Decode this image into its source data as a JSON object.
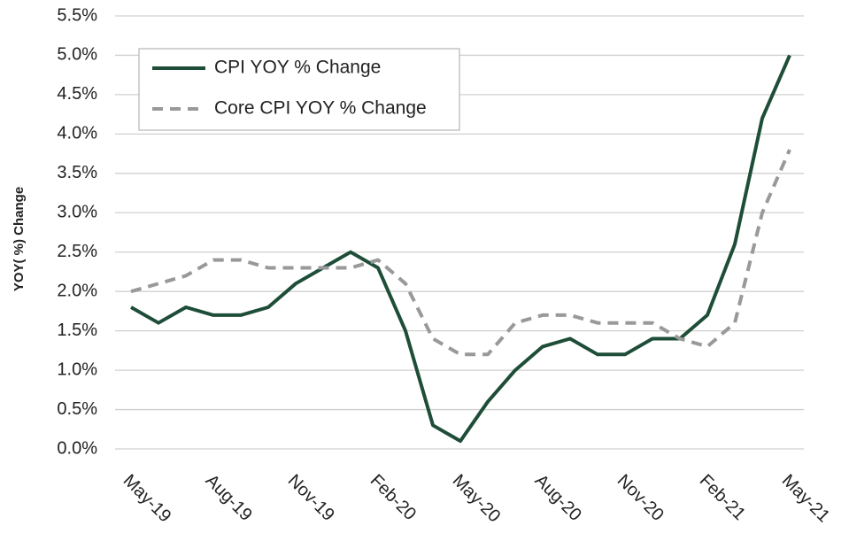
{
  "chart_data": {
    "type": "line",
    "ylabel": "YOY( %) Change",
    "categories": [
      "May-19",
      null,
      null,
      "Aug-19",
      null,
      null,
      "Nov-19",
      null,
      null,
      "Feb-20",
      null,
      null,
      "May-20",
      null,
      null,
      "Aug-20",
      null,
      null,
      "Nov-20",
      null,
      null,
      "Feb-21",
      null,
      null,
      "May-21"
    ],
    "series": [
      {
        "name": "CPI YOY % Change",
        "color": "#1e4d38",
        "dash": "solid",
        "values": [
          1.8,
          1.6,
          1.8,
          1.7,
          1.7,
          1.8,
          2.1,
          2.3,
          2.5,
          2.3,
          1.5,
          0.3,
          0.1,
          0.6,
          1.0,
          1.3,
          1.4,
          1.2,
          1.2,
          1.4,
          1.4,
          1.7,
          2.6,
          4.2,
          5.0
        ]
      },
      {
        "name": "Core CPI YOY % Change",
        "color": "#999999",
        "dash": "dashed",
        "values": [
          2.0,
          2.1,
          2.2,
          2.4,
          2.4,
          2.3,
          2.3,
          2.3,
          2.3,
          2.4,
          2.1,
          1.4,
          1.2,
          1.2,
          1.6,
          1.7,
          1.7,
          1.6,
          1.6,
          1.6,
          1.4,
          1.3,
          1.6,
          3.0,
          3.8
        ]
      }
    ],
    "ylim": [
      0,
      5.5
    ],
    "yticks": [
      {
        "value": 0,
        "label": "0.0%"
      },
      {
        "value": 0.5,
        "label": "0.5%"
      },
      {
        "value": 1,
        "label": "1.0%"
      },
      {
        "value": 1.5,
        "label": "1.5%"
      },
      {
        "value": 2,
        "label": "2.0%"
      },
      {
        "value": 2.5,
        "label": "2.5%"
      },
      {
        "value": 3,
        "label": "3.0%"
      },
      {
        "value": 3.5,
        "label": "3.5%"
      },
      {
        "value": 4,
        "label": "4.0%"
      },
      {
        "value": 4.5,
        "label": "4.5%"
      },
      {
        "value": 5,
        "label": "5.0%"
      },
      {
        "value": 5.5,
        "label": "5.5%"
      }
    ],
    "grid": true,
    "legend": "upper left"
  }
}
